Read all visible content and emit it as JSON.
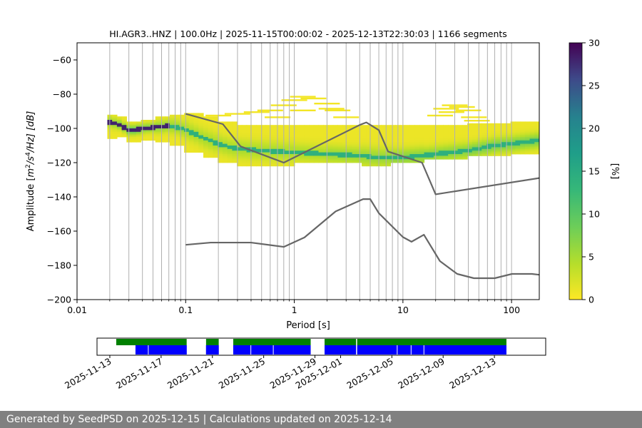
{
  "chart_data": {
    "type": "heatmap",
    "title": "HI.AGR3..HNZ | 100.0Hz | 2025-11-15T00:00:02 - 2025-12-13T22:30:03 | 1166 segments",
    "xlabel": "Period [s]",
    "ylabel": "Amplitude [m²/s⁴/Hz] [dB]",
    "ylabel_parts": {
      "pre": "Amplitude [",
      "m": "m",
      "two": "2",
      "mid": "/s",
      "four": "4",
      "post": "/Hz] [dB]"
    },
    "x_scale": "log",
    "xlim": [
      0.01,
      180
    ],
    "ylim": [
      -200,
      -50
    ],
    "x_ticks": [
      0.01,
      0.1,
      1,
      10,
      100
    ],
    "x_tick_labels": [
      "0.01",
      "0.1",
      "1",
      "10",
      "100"
    ],
    "y_ticks": [
      -200,
      -180,
      -160,
      -140,
      -120,
      -100,
      -80,
      -60
    ],
    "y_tick_labels": [
      "−200",
      "−180",
      "−160",
      "−140",
      "−120",
      "−100",
      "−80",
      "−60"
    ],
    "colorbar": {
      "label": "[%]",
      "min": 0,
      "max": 30,
      "ticks": [
        0,
        5,
        10,
        15,
        20,
        25,
        30
      ],
      "tick_labels": [
        "0",
        "5",
        "10",
        "15",
        "20",
        "25",
        "30"
      ]
    },
    "noise_models": [
      {
        "name": "NHNM",
        "points": [
          [
            0.1,
            -91.5
          ],
          [
            0.22,
            -97.5
          ],
          [
            0.32,
            -110.5
          ],
          [
            0.8,
            -120
          ],
          [
            4.0,
            -98
          ],
          [
            4.6,
            -96.5
          ],
          [
            6.0,
            -101
          ],
          [
            7.3,
            -113.5
          ],
          [
            15.0,
            -120
          ],
          [
            20.0,
            -138.5
          ],
          [
            180,
            -129
          ]
        ]
      },
      {
        "name": "NLNM",
        "points": [
          [
            0.1,
            -168
          ],
          [
            0.17,
            -166.7
          ],
          [
            0.4,
            -166.7
          ],
          [
            0.8,
            -169.2
          ],
          [
            1.24,
            -163.7
          ],
          [
            2.4,
            -148.5
          ],
          [
            4.3,
            -141.3
          ],
          [
            5.0,
            -141.3
          ],
          [
            6.0,
            -149.5
          ],
          [
            10.0,
            -163.5
          ],
          [
            12.0,
            -166.2
          ],
          [
            15.6,
            -162.1
          ],
          [
            21.9,
            -177.5
          ],
          [
            31.6,
            -185
          ],
          [
            45.0,
            -187.5
          ],
          [
            70.0,
            -187.5
          ],
          [
            101,
            -185
          ],
          [
            154,
            -185
          ],
          [
            180,
            -185.5
          ]
        ]
      }
    ],
    "psd_cells": [
      {
        "x": [
          0.019,
          0.024
        ],
        "y": [
          -106,
          -92
        ],
        "lo": 1,
        "hi": 6
      },
      {
        "x": [
          0.024,
          0.03
        ],
        "y": [
          -105,
          -93
        ],
        "lo": 1,
        "hi": 8
      },
      {
        "x": [
          0.03,
          0.04
        ],
        "y": [
          -108,
          -96
        ],
        "lo": 1,
        "hi": 10
      },
      {
        "x": [
          0.04,
          0.055
        ],
        "y": [
          -107,
          -95
        ],
        "lo": 1,
        "hi": 8
      },
      {
        "x": [
          0.055,
          0.075
        ],
        "y": [
          -108,
          -93
        ],
        "lo": 1,
        "hi": 7
      },
      {
        "x": [
          0.075,
          0.1
        ],
        "y": [
          -110,
          -92
        ],
        "lo": 1,
        "hi": 6
      },
      {
        "x": [
          0.1,
          0.14
        ],
        "y": [
          -114,
          -91
        ],
        "lo": 1,
        "hi": 5
      },
      {
        "x": [
          0.14,
          0.2
        ],
        "y": [
          -117,
          -93
        ],
        "lo": 1,
        "hi": 5
      },
      {
        "x": [
          0.2,
          0.3
        ],
        "y": [
          -120,
          -96
        ],
        "lo": 1,
        "hi": 5
      },
      {
        "x": [
          0.3,
          0.5
        ],
        "y": [
          -122,
          -98
        ],
        "lo": 1,
        "hi": 5
      },
      {
        "x": [
          0.5,
          1.0
        ],
        "y": [
          -122,
          -98
        ],
        "lo": 1,
        "hi": 5
      },
      {
        "x": [
          1.0,
          2.0
        ],
        "y": [
          -120,
          -98
        ],
        "lo": 1,
        "hi": 5
      },
      {
        "x": [
          2.0,
          4.0
        ],
        "y": [
          -120,
          -98
        ],
        "lo": 1,
        "hi": 6
      },
      {
        "x": [
          4.0,
          8.0
        ],
        "y": [
          -122,
          -98
        ],
        "lo": 1,
        "hi": 6
      },
      {
        "x": [
          8.0,
          16.0
        ],
        "y": [
          -120,
          -98
        ],
        "lo": 1,
        "hi": 7
      },
      {
        "x": [
          16.0,
          40.0
        ],
        "y": [
          -118,
          -98
        ],
        "lo": 1,
        "hi": 7
      },
      {
        "x": [
          40.0,
          100.0
        ],
        "y": [
          -116,
          -97
        ],
        "lo": 1,
        "hi": 8
      },
      {
        "x": [
          100.0,
          180.0
        ],
        "y": [
          -115,
          -96
        ],
        "lo": 1,
        "hi": 8
      }
    ],
    "psd_mode": [
      [
        0.019,
        -96
      ],
      [
        0.022,
        -97
      ],
      [
        0.025,
        -98
      ],
      [
        0.028,
        -100
      ],
      [
        0.03,
        -101
      ],
      [
        0.035,
        -101
      ],
      [
        0.04,
        -100
      ],
      [
        0.05,
        -99.5
      ],
      [
        0.06,
        -99
      ],
      [
        0.07,
        -98.5
      ],
      [
        0.08,
        -99
      ],
      [
        0.1,
        -101
      ],
      [
        0.12,
        -103
      ],
      [
        0.15,
        -106
      ],
      [
        0.2,
        -109
      ],
      [
        0.25,
        -111
      ],
      [
        0.3,
        -112
      ],
      [
        0.5,
        -113
      ],
      [
        1.0,
        -114
      ],
      [
        2.0,
        -115
      ],
      [
        4.0,
        -116
      ],
      [
        6.0,
        -117
      ],
      [
        8.0,
        -117
      ],
      [
        10.0,
        -117
      ],
      [
        15.0,
        -116
      ],
      [
        20.0,
        -115
      ],
      [
        40.0,
        -113
      ],
      [
        70.0,
        -110
      ],
      [
        100.0,
        -109
      ],
      [
        180.0,
        -107
      ]
    ],
    "availability": {
      "date_range": [
        "2025-11-12",
        "2025-12-17"
      ],
      "tick_labels": [
        "2025-11-13",
        "2025-11-17",
        "2025-11-21",
        "2025-11-25",
        "2025-11-29",
        "2025-12-01",
        "2025-12-05",
        "2025-12-09",
        "2025-12-13"
      ],
      "tick_dates": [
        "2025-11-13",
        "2025-11-17",
        "2025-11-21",
        "2025-11-25",
        "2025-11-29",
        "2025-12-01",
        "2025-12-05",
        "2025-12-09",
        "2025-12-13"
      ],
      "green_segments": [
        [
          "2025-11-13T12:00",
          "2025-11-19T00:00"
        ],
        [
          "2025-11-20T12:00",
          "2025-11-21T12:00"
        ],
        [
          "2025-11-22T15:00",
          "2025-12-13T22:30"
        ]
      ],
      "green_gaps": [
        [
          "2025-11-19T00:00",
          "2025-11-20T12:00"
        ],
        [
          "2025-11-21T12:00",
          "2025-11-22T15:00"
        ],
        [
          "2025-11-28T16:00",
          "2025-11-29T18:00"
        ],
        [
          "2025-12-02T05:00",
          "2025-12-02T07:00"
        ]
      ],
      "blue_segments": [
        [
          "2025-11-15T00:00",
          "2025-12-13T22:30"
        ]
      ],
      "blue_gaps": [
        [
          "2025-11-19T00:00",
          "2025-11-20T12:00"
        ],
        [
          "2025-11-21T12:00",
          "2025-11-22T15:00"
        ],
        [
          "2025-11-28T16:00",
          "2025-11-29T18:00"
        ],
        [
          "2025-12-02T05:00",
          "2025-12-02T07:00"
        ]
      ],
      "blue_ticks": [
        "2025-11-16T00:00",
        "2025-11-24T00:00",
        "2025-11-25T18:00",
        "2025-12-05T10:00",
        "2025-12-06T12:00",
        "2025-12-07T12:00"
      ],
      "colors": {
        "green": "#008000",
        "blue": "#0000ff"
      }
    }
  },
  "colors": {
    "model_line": "#666666",
    "grid": "#b0b0b0",
    "footer_bg": "#808080"
  },
  "footer": {
    "text": "Generated by SeedPSD on 2025-12-15 | Calculations updated on 2025-12-14"
  }
}
